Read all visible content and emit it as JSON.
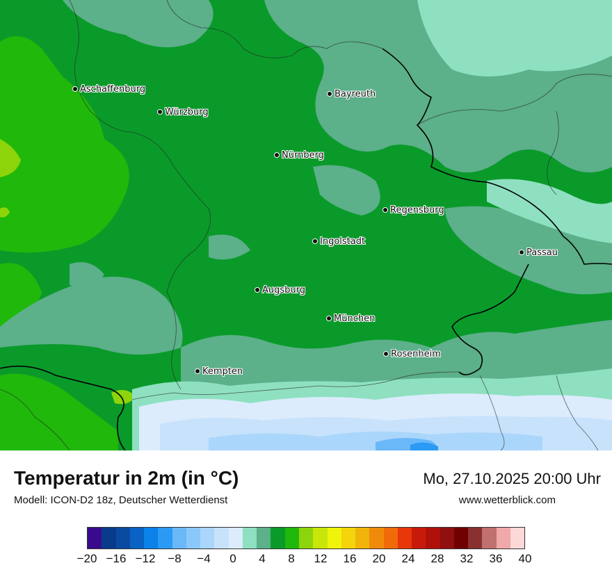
{
  "map": {
    "cities": [
      {
        "name": "Aschaffenburg"
      },
      {
        "name": "Würzburg"
      },
      {
        "name": "Bayreuth"
      },
      {
        "name": "Nürnberg"
      },
      {
        "name": "Regensburg"
      },
      {
        "name": "Ingolstadt"
      },
      {
        "name": "Passau"
      },
      {
        "name": "Augsburg"
      },
      {
        "name": "München"
      },
      {
        "name": "Rosenheim"
      },
      {
        "name": "Kempten"
      }
    ]
  },
  "header": {
    "title": "Temperatur in 2m (in °C)",
    "subtitle": "Modell: ICON-D2 18z, Deutscher Wetterdienst",
    "datetime": "Mo, 27.10.2025 20:00 Uhr",
    "website": "www.wetterblick.com"
  },
  "legend": {
    "colors": [
      "#3a0a8c",
      "#0a3a8c",
      "#0a4aa0",
      "#0a62c4",
      "#0a82e8",
      "#2a9af5",
      "#6ab8f8",
      "#8ac8fa",
      "#aad6fb",
      "#c8e2fc",
      "#dcecfd",
      "#8ee0c0",
      "#5cb08a",
      "#0a9a2a",
      "#20b80a",
      "#8ed40a",
      "#c8e60a",
      "#f0f40a",
      "#f4d40a",
      "#f0b40a",
      "#f08a0a",
      "#f06a0a",
      "#e8380a",
      "#c81a0a",
      "#b0100a",
      "#901010",
      "#700000",
      "#8a3030",
      "#c07070",
      "#f0a8a8",
      "#fcd8d8"
    ],
    "ticks": [
      "−20",
      "−16",
      "−12",
      "−8",
      "−4",
      "0",
      "4",
      "8",
      "12",
      "16",
      "20",
      "24",
      "28",
      "32",
      "36",
      "40"
    ]
  }
}
